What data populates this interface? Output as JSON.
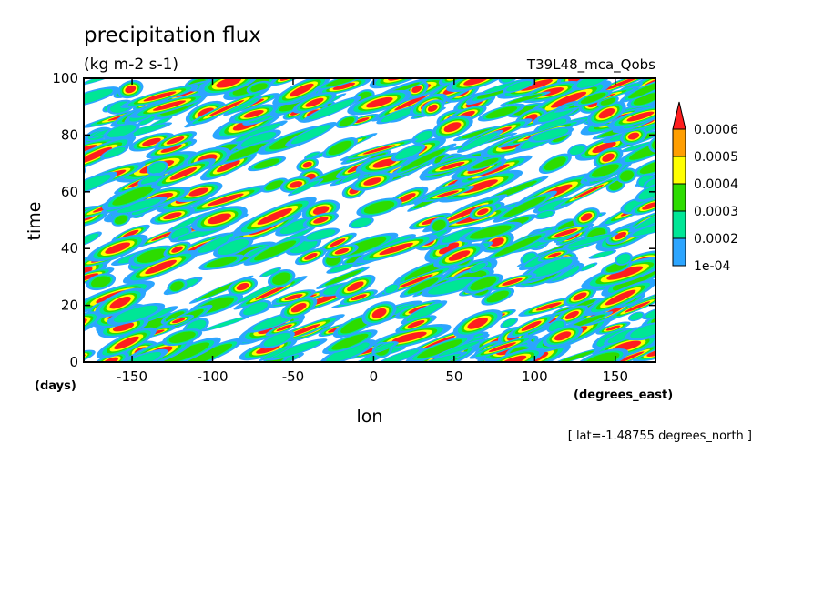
{
  "chart_data": {
    "type": "heatmap",
    "title": "precipitation flux",
    "units": "(kg m-2 s-1)",
    "dataset": "T39L48_mca_Qobs",
    "xlabel": "lon",
    "xunits": "(degrees_east)",
    "ylabel": "time",
    "yunits": "(days)",
    "note": "[ lat=-1.48755 degrees_north ]",
    "xlim": [
      -180,
      175
    ],
    "ylim": [
      0,
      100
    ],
    "xticks": [
      -150,
      -100,
      -50,
      0,
      50,
      100,
      150
    ],
    "xtick_labels": [
      "-150",
      "-100",
      "-50",
      "0",
      "50",
      "100",
      "150"
    ],
    "yticks": [
      0,
      20,
      40,
      60,
      80,
      100
    ],
    "ytick_labels": [
      "0",
      "20",
      "40",
      "60",
      "80",
      "100"
    ],
    "colorbar": {
      "levels": [
        "1e-04",
        "0.0002",
        "0.0003",
        "0.0004",
        "0.0005",
        "0.0006"
      ],
      "colors": [
        "#2ca5ff",
        "#00e696",
        "#2ddc00",
        "#ffff00",
        "#ff9e00",
        "#ff1e1e"
      ]
    },
    "grid": false
  }
}
